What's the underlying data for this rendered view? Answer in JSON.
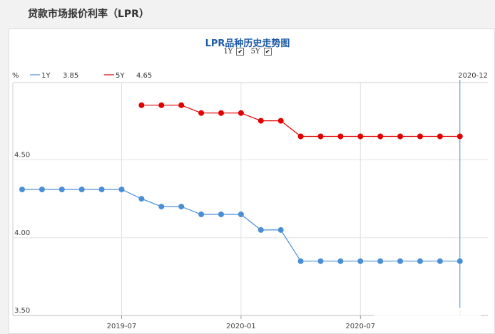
{
  "page": {
    "title": "贷款市场报价利率（LPR）"
  },
  "chart_title": "LPR品种历史走势图",
  "toggles": [
    {
      "label": "1Y",
      "checked": true
    },
    {
      "label": "5Y",
      "checked": true
    }
  ],
  "legend": {
    "unit": "%",
    "items": [
      {
        "name": "1Y",
        "value": "3.85",
        "color": "#4a8fd6"
      },
      {
        "name": "5Y",
        "value": "4.65",
        "color": "#e00000"
      }
    ],
    "cursor_label": "2020-12"
  },
  "chart_data": {
    "type": "line",
    "x": [
      "2019-02",
      "2019-03",
      "2019-04",
      "2019-05",
      "2019-06",
      "2019-07",
      "2019-08",
      "2019-09",
      "2019-10",
      "2019-11",
      "2019-12",
      "2020-01",
      "2020-02",
      "2020-03",
      "2020-04",
      "2020-05",
      "2020-06",
      "2020-07",
      "2020-08",
      "2020-09",
      "2020-10",
      "2020-11",
      "2020-12"
    ],
    "series": [
      {
        "name": "1Y",
        "color": "#4a8fd6",
        "values": [
          4.31,
          4.31,
          4.31,
          4.31,
          4.31,
          4.31,
          4.25,
          4.2,
          4.2,
          4.15,
          4.15,
          4.15,
          4.05,
          4.05,
          3.85,
          3.85,
          3.85,
          3.85,
          3.85,
          3.85,
          3.85,
          3.85,
          3.85
        ]
      },
      {
        "name": "5Y",
        "color": "#e00000",
        "values": [
          null,
          null,
          null,
          null,
          null,
          null,
          4.85,
          4.85,
          4.85,
          4.8,
          4.8,
          4.8,
          4.75,
          4.75,
          4.65,
          4.65,
          4.65,
          4.65,
          4.65,
          4.65,
          4.65,
          4.65,
          4.65
        ]
      }
    ],
    "x_ticks": [
      "2019-07",
      "2020-01",
      "2020-07"
    ],
    "y_ticks": [
      "3.50",
      "4.00",
      "4.50"
    ],
    "ylim": [
      3.5,
      5.0
    ],
    "grid": true
  }
}
